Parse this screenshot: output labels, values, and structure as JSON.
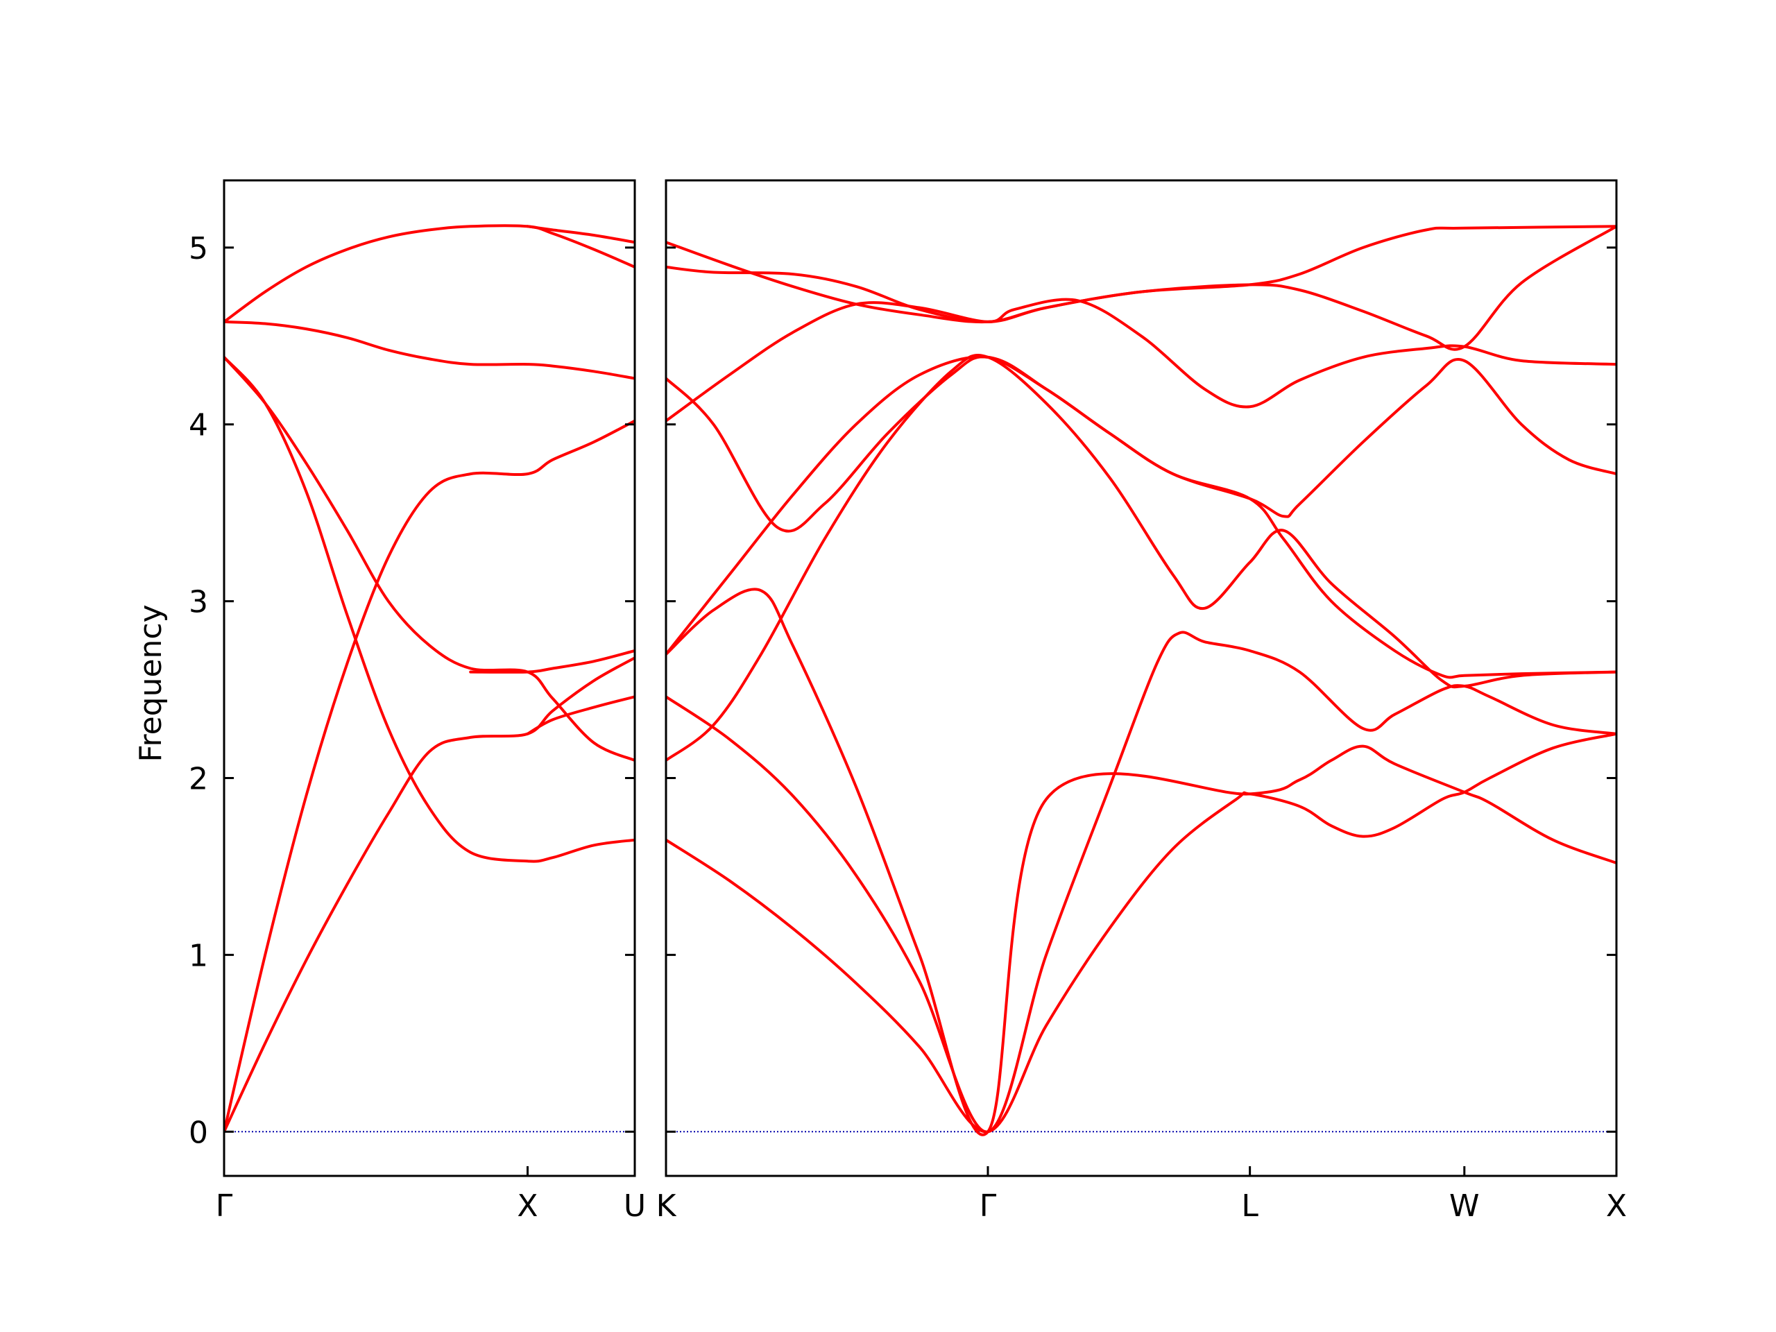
{
  "chart_data": {
    "type": "line",
    "ylabel": "Frequency",
    "ylim": [
      -0.25,
      5.38
    ],
    "yticks": [
      0,
      1,
      2,
      3,
      4,
      5
    ],
    "colors": {
      "band": "#ff0000",
      "zero_line": "#0000aa",
      "axes": "#000000"
    },
    "grid": false,
    "panels": [
      {
        "xrange": [
          0,
          1.0
        ],
        "xticks": [
          {
            "x": 0.0,
            "label": "Γ"
          },
          {
            "x": 0.739,
            "label": "X"
          },
          {
            "x": 1.0,
            "label": "U"
          }
        ],
        "bands": [
          [
            [
              0,
              0
            ],
            [
              0.1,
              0.5
            ],
            [
              0.2,
              0.97
            ],
            [
              0.3,
              1.4
            ],
            [
              0.4,
              1.8
            ],
            [
              0.5,
              2.15
            ],
            [
              0.6,
              2.23
            ],
            [
              0.739,
              2.25
            ],
            [
              0.8,
              2.38
            ],
            [
              0.9,
              2.55
            ],
            [
              1.0,
              2.68
            ]
          ],
          [
            [
              0,
              0
            ],
            [
              0.1,
              1.0
            ],
            [
              0.2,
              1.9
            ],
            [
              0.3,
              2.65
            ],
            [
              0.4,
              3.25
            ],
            [
              0.5,
              3.62
            ],
            [
              0.6,
              3.72
            ],
            [
              0.739,
              3.72
            ],
            [
              0.8,
              3.8
            ],
            [
              0.9,
              3.9
            ],
            [
              1.0,
              4.02
            ]
          ],
          [
            [
              0,
              4.38
            ],
            [
              0.1,
              4.12
            ],
            [
              0.2,
              3.62
            ],
            [
              0.3,
              2.92
            ],
            [
              0.4,
              2.28
            ],
            [
              0.5,
              1.83
            ],
            [
              0.6,
              1.58
            ],
            [
              0.739,
              1.53
            ],
            [
              0.8,
              1.55
            ],
            [
              0.9,
              1.62
            ],
            [
              1.0,
              1.65
            ]
          ],
          [
            [
              0,
              4.38
            ],
            [
              0.1,
              4.12
            ],
            [
              0.2,
              3.78
            ],
            [
              0.3,
              3.4
            ],
            [
              0.4,
              3.0
            ],
            [
              0.5,
              2.75
            ],
            [
              0.6,
              2.62
            ],
            [
              0.739,
              2.6
            ],
            [
              0.8,
              2.45
            ],
            [
              0.9,
              2.2
            ],
            [
              1.0,
              2.1
            ]
          ],
          [
            [
              0,
              4.58
            ],
            [
              0.1,
              4.57
            ],
            [
              0.2,
              4.54
            ],
            [
              0.3,
              4.49
            ],
            [
              0.4,
              4.42
            ],
            [
              0.5,
              4.37
            ],
            [
              0.6,
              4.34
            ],
            [
              0.739,
              4.34
            ],
            [
              0.8,
              4.33
            ],
            [
              0.9,
              4.3
            ],
            [
              1.0,
              4.26
            ]
          ],
          [
            [
              0,
              4.58
            ],
            [
              0.1,
              4.75
            ],
            [
              0.2,
              4.89
            ],
            [
              0.3,
              4.99
            ],
            [
              0.4,
              5.06
            ],
            [
              0.5,
              5.1
            ],
            [
              0.6,
              5.12
            ],
            [
              0.739,
              5.12
            ],
            [
              0.8,
              5.08
            ],
            [
              0.9,
              4.99
            ],
            [
              1.0,
              4.89
            ]
          ],
          [
            [
              0.6,
              2.6
            ],
            [
              0.739,
              2.6
            ],
            [
              0.8,
              2.62
            ],
            [
              0.9,
              2.66
            ],
            [
              1.0,
              2.72
            ]
          ],
          [
            [
              0.739,
              2.25
            ],
            [
              0.8,
              2.33
            ],
            [
              0.9,
              2.4
            ],
            [
              1.0,
              2.46
            ]
          ],
          [
            [
              0.739,
              5.12
            ],
            [
              0.8,
              5.1
            ],
            [
              0.9,
              5.07
            ],
            [
              1.0,
              5.03
            ]
          ]
        ]
      },
      {
        "xrange": [
          0,
          3.0
        ],
        "xticks": [
          {
            "x": 0.0,
            "label": "K"
          },
          {
            "x": 1.016,
            "label": "Γ"
          },
          {
            "x": 1.843,
            "label": "L"
          },
          {
            "x": 2.52,
            "label": "W"
          },
          {
            "x": 3.0,
            "label": "X"
          }
        ],
        "bands": [
          [
            [
              0,
              1.65
            ],
            [
              0.2,
              1.42
            ],
            [
              0.4,
              1.15
            ],
            [
              0.6,
              0.84
            ],
            [
              0.8,
              0.48
            ],
            [
              1.016,
              0.0
            ],
            [
              1.2,
              0.6
            ],
            [
              1.4,
              1.15
            ],
            [
              1.6,
              1.6
            ],
            [
              1.8,
              1.88
            ],
            [
              1.843,
              1.91
            ],
            [
              2.0,
              1.84
            ],
            [
              2.1,
              1.73
            ],
            [
              2.2,
              1.67
            ],
            [
              2.3,
              1.72
            ],
            [
              2.45,
              1.88
            ],
            [
              2.52,
              1.92
            ],
            [
              2.6,
              2.0
            ],
            [
              2.8,
              2.17
            ],
            [
              3.0,
              2.25
            ]
          ],
          [
            [
              0,
              2.46
            ],
            [
              0.2,
              2.22
            ],
            [
              0.4,
              1.9
            ],
            [
              0.6,
              1.45
            ],
            [
              0.8,
              0.85
            ],
            [
              1.016,
              0.0
            ],
            [
              1.2,
              1.0
            ],
            [
              1.4,
              1.95
            ],
            [
              1.55,
              2.65
            ],
            [
              1.62,
              2.82
            ],
            [
              1.7,
              2.77
            ],
            [
              1.843,
              2.72
            ],
            [
              2.0,
              2.6
            ],
            [
              2.2,
              2.28
            ],
            [
              2.3,
              2.36
            ],
            [
              2.45,
              2.5
            ],
            [
              2.52,
              2.52
            ],
            [
              2.6,
              2.46
            ],
            [
              2.8,
              2.3
            ],
            [
              3.0,
              2.25
            ]
          ],
          [
            [
              0,
              2.7
            ],
            [
              0.15,
              2.95
            ],
            [
              0.3,
              3.06
            ],
            [
              0.4,
              2.75
            ],
            [
              0.6,
              1.95
            ],
            [
              0.8,
              1.0
            ],
            [
              1.016,
              0.0
            ],
            [
              1.2,
              1.88
            ],
            [
              1.843,
              1.91
            ],
            [
              2.0,
              1.99
            ],
            [
              2.1,
              2.1
            ],
            [
              2.2,
              2.18
            ],
            [
              2.3,
              2.08
            ],
            [
              2.52,
              1.92
            ],
            [
              2.6,
              1.86
            ],
            [
              2.8,
              1.65
            ],
            [
              3.0,
              1.52
            ]
          ],
          [
            [
              0,
              2.1
            ],
            [
              0.15,
              2.3
            ],
            [
              0.3,
              2.7
            ],
            [
              0.5,
              3.35
            ],
            [
              0.7,
              3.9
            ],
            [
              0.9,
              4.3
            ],
            [
              1.016,
              4.38
            ],
            [
              1.2,
              4.12
            ],
            [
              1.4,
              3.7
            ],
            [
              1.6,
              3.15
            ],
            [
              1.7,
              2.96
            ],
            [
              1.843,
              3.22
            ],
            [
              1.95,
              3.4
            ],
            [
              2.1,
              3.1
            ],
            [
              2.3,
              2.8
            ],
            [
              2.45,
              2.55
            ],
            [
              2.52,
              2.52
            ],
            [
              2.7,
              2.58
            ],
            [
              3.0,
              2.6
            ]
          ],
          [
            [
              0,
              2.7
            ],
            [
              0.2,
              3.15
            ],
            [
              0.4,
              3.6
            ],
            [
              0.6,
              4.0
            ],
            [
              0.8,
              4.28
            ],
            [
              1.016,
              4.38
            ],
            [
              1.2,
              4.2
            ],
            [
              1.4,
              3.95
            ],
            [
              1.6,
              3.72
            ],
            [
              1.843,
              3.58
            ],
            [
              1.95,
              3.48
            ],
            [
              2.0,
              3.55
            ],
            [
              2.2,
              3.9
            ],
            [
              2.4,
              4.22
            ],
            [
              2.52,
              4.36
            ],
            [
              2.7,
              4.0
            ],
            [
              2.85,
              3.8
            ],
            [
              3.0,
              3.72
            ]
          ],
          [
            [
              0,
              4.26
            ],
            [
              0.15,
              4.0
            ],
            [
              0.35,
              3.42
            ],
            [
              0.5,
              3.55
            ],
            [
              0.7,
              3.95
            ],
            [
              0.9,
              4.28
            ],
            [
              1.016,
              4.38
            ],
            [
              1.2,
              4.2
            ],
            [
              1.4,
              3.95
            ],
            [
              1.6,
              3.72
            ],
            [
              1.843,
              3.58
            ],
            [
              1.95,
              3.35
            ],
            [
              2.1,
              3.0
            ],
            [
              2.3,
              2.72
            ],
            [
              2.45,
              2.58
            ],
            [
              2.52,
              2.58
            ],
            [
              2.7,
              2.59
            ],
            [
              3.0,
              2.6
            ]
          ],
          [
            [
              0,
              4.02
            ],
            [
              0.2,
              4.28
            ],
            [
              0.4,
              4.52
            ],
            [
              0.6,
              4.68
            ],
            [
              0.8,
              4.66
            ],
            [
              1.016,
              4.58
            ],
            [
              1.1,
              4.65
            ],
            [
              1.3,
              4.7
            ],
            [
              1.5,
              4.5
            ],
            [
              1.7,
              4.2
            ],
            [
              1.843,
              4.1
            ],
            [
              2.0,
              4.25
            ],
            [
              2.2,
              4.38
            ],
            [
              2.4,
              4.43
            ],
            [
              2.52,
              4.44
            ],
            [
              2.7,
              4.36
            ],
            [
              3.0,
              4.34
            ]
          ],
          [
            [
              0,
              4.89
            ],
            [
              0.15,
              4.86
            ],
            [
              0.4,
              4.85
            ],
            [
              0.6,
              4.78
            ],
            [
              0.8,
              4.65
            ],
            [
              1.016,
              4.58
            ],
            [
              1.2,
              4.66
            ],
            [
              1.5,
              4.75
            ],
            [
              1.843,
              4.79
            ],
            [
              2.0,
              4.76
            ],
            [
              2.2,
              4.64
            ],
            [
              2.4,
              4.5
            ],
            [
              2.52,
              4.44
            ],
            [
              2.7,
              4.8
            ],
            [
              3.0,
              5.12
            ]
          ],
          [
            [
              0,
              5.03
            ],
            [
              0.2,
              4.9
            ],
            [
              0.4,
              4.78
            ],
            [
              0.6,
              4.68
            ],
            [
              0.8,
              4.62
            ],
            [
              1.016,
              4.58
            ],
            [
              1.2,
              4.66
            ],
            [
              1.5,
              4.75
            ],
            [
              1.843,
              4.79
            ],
            [
              2.0,
              4.85
            ],
            [
              2.2,
              5.0
            ],
            [
              2.4,
              5.1
            ],
            [
              2.52,
              5.11
            ],
            [
              3.0,
              5.12
            ]
          ]
        ]
      }
    ]
  }
}
